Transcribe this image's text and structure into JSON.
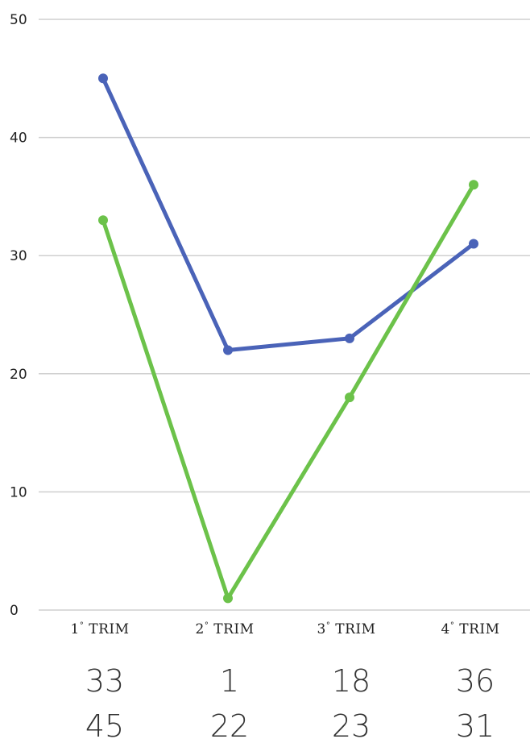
{
  "chart_data": {
    "type": "line",
    "categories": [
      "1° TRIM",
      "2° TRIM",
      "3° TRIM",
      "4° TRIM"
    ],
    "category_parts": [
      {
        "num": "1",
        "deg": "°",
        "word": " TRIM"
      },
      {
        "num": "2",
        "deg": "°",
        "word": " TRIM"
      },
      {
        "num": "3",
        "deg": "°",
        "word": " TRIM"
      },
      {
        "num": "4",
        "deg": "°",
        "word": " TRIM"
      }
    ],
    "ylim": [
      0,
      50
    ],
    "yticks": [
      0,
      10,
      20,
      30,
      40,
      50
    ],
    "grid": true,
    "series": [
      {
        "values": [
          45,
          22,
          23,
          31
        ],
        "color": "#4a63b8"
      },
      {
        "values": [
          33,
          1,
          18,
          36
        ],
        "color": "#6cc24a"
      }
    ],
    "value_rows": [
      [
        "33",
        "1",
        "18",
        "36"
      ],
      [
        "45",
        "22",
        "23",
        "31"
      ]
    ]
  }
}
